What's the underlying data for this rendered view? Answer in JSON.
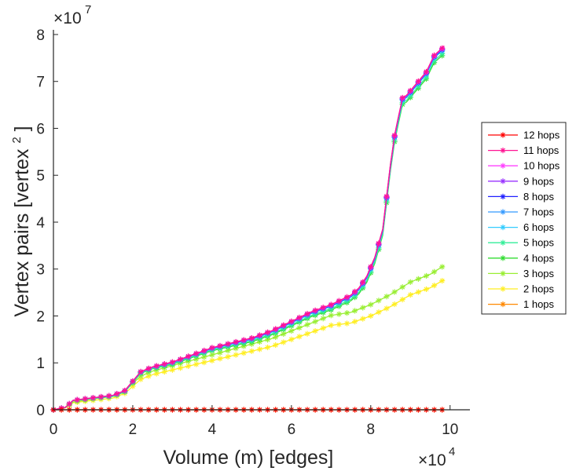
{
  "chart_data": {
    "type": "line",
    "xlabel": "Volume (m) [edges]",
    "ylabel": "Vertex pairs [vertex",
    "ylabel_sup": "2",
    "ylabel_close": "]",
    "x_multiplier": {
      "base": "×10",
      "exp": "4"
    },
    "y_multiplier": {
      "base": "×10",
      "exp": "7"
    },
    "xlim": [
      0,
      10.5
    ],
    "ylim": [
      0,
      8.1
    ],
    "xticks": [
      0,
      2,
      4,
      6,
      8,
      10
    ],
    "yticks": [
      0,
      1,
      2,
      3,
      4,
      5,
      6,
      7,
      8
    ],
    "grid": false,
    "legend_position": "right",
    "x_units_note": "x in units of 1e4 edges, y in units of 1e7 vertex pairs",
    "groups": {
      "upper": {
        "x": [
          0,
          0.3,
          0.5,
          1.0,
          1.5,
          1.8,
          2.0,
          2.2,
          2.5,
          3.0,
          3.5,
          4.0,
          4.5,
          5.0,
          5.5,
          6.0,
          6.5,
          7.0,
          7.5,
          7.7,
          7.9,
          8.1,
          8.3,
          8.4,
          8.5,
          8.6,
          8.7,
          8.8,
          8.9,
          9.0,
          9.2,
          9.4,
          9.6,
          9.8,
          9.9
        ],
        "values": [
          0,
          0.05,
          0.2,
          0.25,
          0.3,
          0.4,
          0.6,
          0.8,
          0.9,
          1.0,
          1.15,
          1.3,
          1.4,
          1.5,
          1.65,
          1.85,
          2.05,
          2.2,
          2.4,
          2.55,
          2.8,
          3.2,
          3.8,
          4.5,
          5.2,
          5.8,
          6.2,
          6.6,
          6.65,
          6.75,
          6.95,
          7.15,
          7.5,
          7.65,
          7.75
        ]
      },
      "lower": {
        "x": [
          0,
          0.3,
          0.5,
          1.0,
          1.5,
          1.8,
          2.0,
          2.2,
          2.5,
          3.0,
          3.5,
          4.0,
          4.5,
          5.0,
          5.5,
          6.0,
          6.5,
          7.0,
          7.5,
          8.0,
          8.5,
          9.0,
          9.5,
          9.9
        ],
        "values": [
          0,
          0.04,
          0.15,
          0.2,
          0.25,
          0.35,
          0.5,
          0.65,
          0.75,
          0.85,
          0.95,
          1.05,
          1.15,
          1.25,
          1.35,
          1.5,
          1.65,
          1.8,
          1.85,
          2.0,
          2.2,
          2.45,
          2.6,
          2.8
        ]
      }
    },
    "series": [
      {
        "name": "12 hops",
        "color": "#ff0000",
        "group": "zero",
        "offset": 0
      },
      {
        "name": "11 hops",
        "color": "#ff1493",
        "group": "upper",
        "offset": 0.06
      },
      {
        "name": "10 hops",
        "color": "#ff40ff",
        "group": "upper",
        "offset": 0.05
      },
      {
        "name": "9 hops",
        "color": "#9933ff",
        "group": "upper",
        "offset": 0.04
      },
      {
        "name": "8 hops",
        "color": "#2020ff",
        "group": "upper",
        "offset": 0.03
      },
      {
        "name": "7 hops",
        "color": "#3399ff",
        "group": "upper",
        "offset": 0.02
      },
      {
        "name": "6 hops",
        "color": "#33ccff",
        "group": "upper",
        "offset": 0.0
      },
      {
        "name": "5 hops",
        "color": "#33ee99",
        "group": "upper",
        "offset": -0.06
      },
      {
        "name": "4 hops",
        "color": "#33dd33",
        "group": "upper",
        "offset": -0.1
      },
      {
        "name": "3 hops",
        "color": "#99ee33",
        "group": "lower",
        "offset": 0.3
      },
      {
        "name": "2 hops",
        "color": "#ffee22",
        "group": "lower",
        "offset": 0.0
      },
      {
        "name": "1 hops",
        "color": "#ff8800",
        "group": "zero",
        "offset": 0
      }
    ]
  }
}
